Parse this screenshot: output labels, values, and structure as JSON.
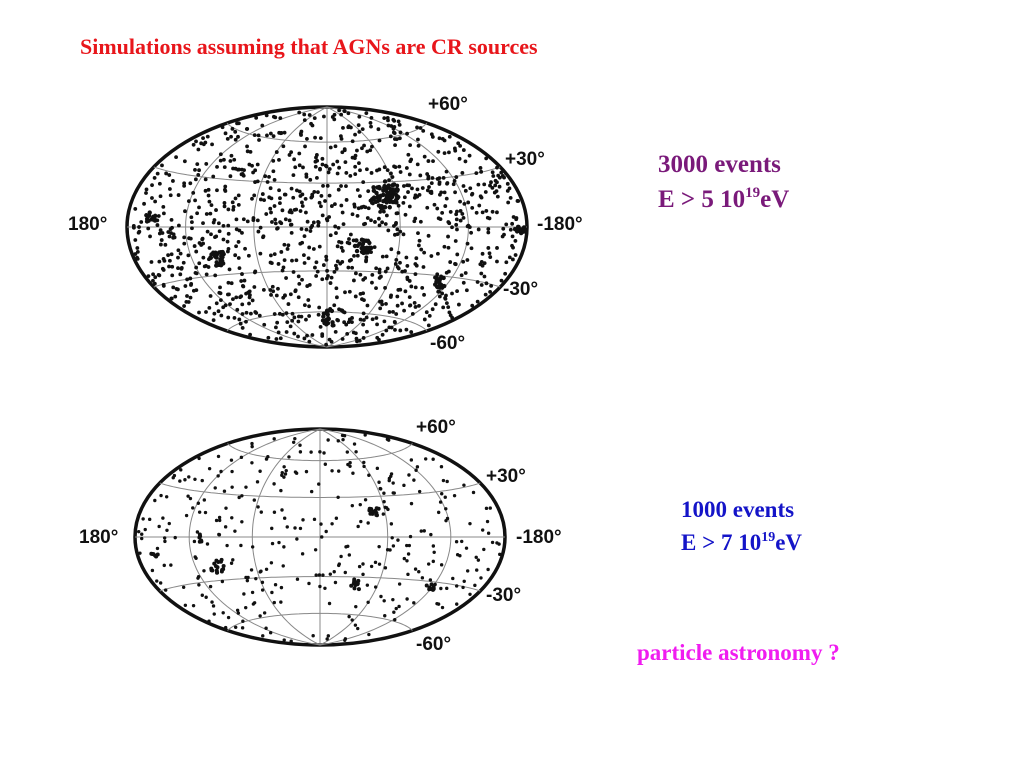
{
  "title": "Simulations assuming that AGNs are CR sources",
  "maps": [
    {
      "labels": [
        "+60°",
        "+30°",
        "180°",
        "-180°",
        "-30°",
        "-60°"
      ],
      "caption": {
        "count": "3000 events",
        "energy": "E > 5 10",
        "exponent": "19",
        "unit": "eV"
      }
    },
    {
      "labels": [
        "+60°",
        "+30°",
        "180°",
        "-180°",
        "-30°",
        "-60°"
      ],
      "caption": {
        "count": "1000 events",
        "energy": "E > 7 10",
        "exponent": "19",
        "unit": "eV"
      }
    }
  ],
  "footer": "particle astronomy ?"
}
